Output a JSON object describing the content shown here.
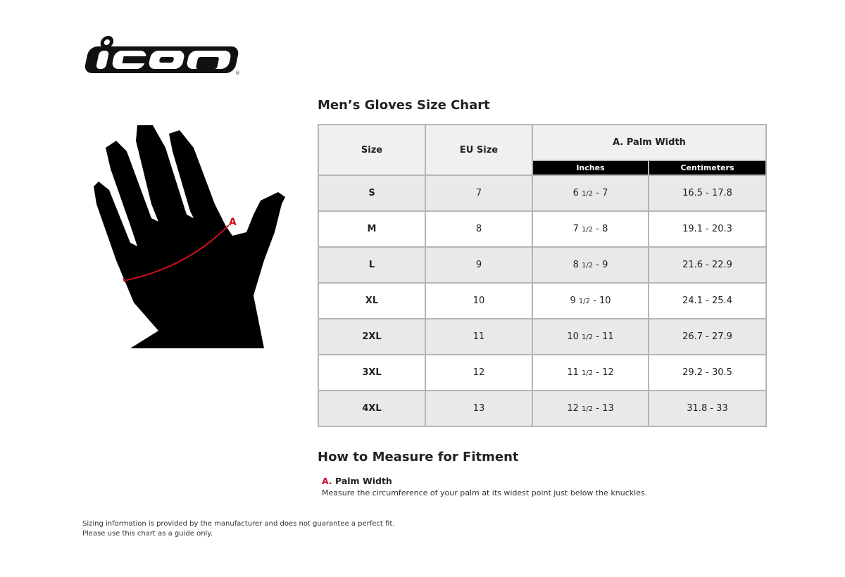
{
  "logo": {
    "text": "icon"
  },
  "chart": {
    "title": "Men’s Gloves Size Chart",
    "headers": {
      "size": "Size",
      "eu_size": "EU Size",
      "palm_width": "A. Palm Width",
      "inches": "Inches",
      "centimeters": "Centimeters"
    },
    "rows": [
      {
        "size": "S",
        "eu": "7",
        "in_whole": "6",
        "in_frac": "1/2",
        "in_rest": " - 7",
        "cm": "16.5 - 17.8"
      },
      {
        "size": "M",
        "eu": "8",
        "in_whole": "7",
        "in_frac": "1/2",
        "in_rest": " - 8",
        "cm": "19.1 - 20.3"
      },
      {
        "size": "L",
        "eu": "9",
        "in_whole": "8",
        "in_frac": "1/2",
        "in_rest": " - 9",
        "cm": "21.6 - 22.9"
      },
      {
        "size": "XL",
        "eu": "10",
        "in_whole": "9",
        "in_frac": "1/2",
        "in_rest": " - 10",
        "cm": "24.1 - 25.4"
      },
      {
        "size": "2XL",
        "eu": "11",
        "in_whole": "10",
        "in_frac": "1/2",
        "in_rest": " - 11",
        "cm": "26.7 - 27.9"
      },
      {
        "size": "3XL",
        "eu": "12",
        "in_whole": "11",
        "in_frac": "1/2",
        "in_rest": " - 12",
        "cm": "29.2 - 30.5"
      },
      {
        "size": "4XL",
        "eu": "13",
        "in_whole": "12",
        "in_frac": "1/2",
        "in_rest": " - 13",
        "cm": "31.8 - 33"
      }
    ]
  },
  "diagram": {
    "marker": "A"
  },
  "measure": {
    "title": "How to Measure for Fitment",
    "letter": "A.",
    "label": "Palm Width",
    "description": "Measure the circumference of your palm at its widest point just below the knuckles."
  },
  "disclaimer": {
    "line1": "Sizing information is provided by the manufacturer and does not guarantee a perfect fit.",
    "line2": "Please use this chart as a guide only."
  },
  "colors": {
    "accent": "#c8102e",
    "header_bg": "#000000",
    "row_alt": "#e9e9e9"
  }
}
